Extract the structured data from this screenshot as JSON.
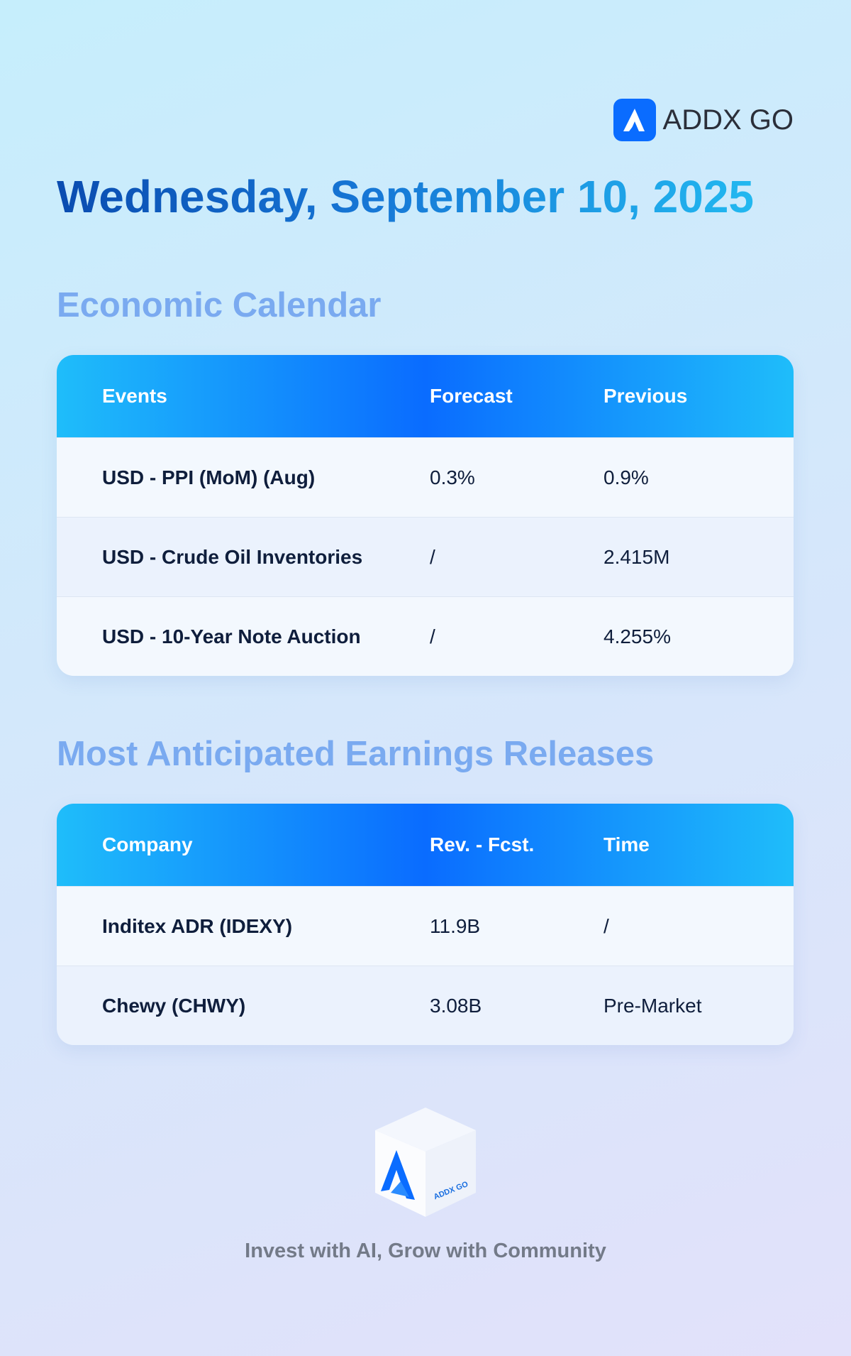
{
  "header": {
    "brand": "ADDX GO",
    "date": "Wednesday, September 10, 2025"
  },
  "economic_calendar": {
    "title": "Economic Calendar",
    "columns": [
      "Events",
      "Forecast",
      "Previous"
    ],
    "rows": [
      [
        "USD - PPI (MoM) (Aug)",
        "0.3%",
        "0.9%"
      ],
      [
        "USD - Crude Oil Inventories",
        "/",
        "2.415M"
      ],
      [
        "USD - 10-Year Note Auction",
        "/",
        "4.255%"
      ]
    ]
  },
  "earnings": {
    "title": "Most Anticipated Earnings Releases",
    "columns": [
      "Company",
      "Rev. - Fcst.",
      "Time"
    ],
    "rows": [
      [
        "Inditex ADR (IDEXY)",
        "11.9B",
        "/"
      ],
      [
        "Chewy (CHWY)",
        "3.08B",
        "Pre-Market"
      ]
    ]
  },
  "footer": {
    "logo_text": "ADDX GO",
    "tagline": "Invest with AI, Grow with Community"
  }
}
